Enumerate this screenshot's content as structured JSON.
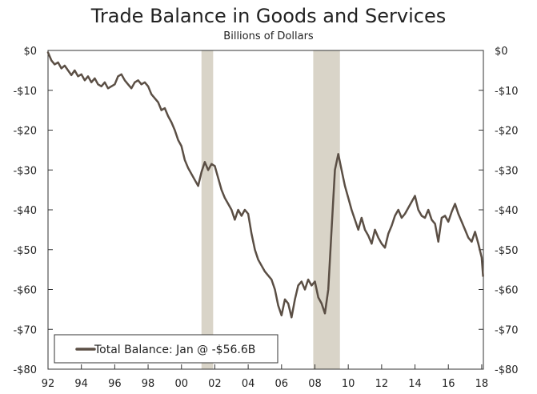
{
  "chart_data": {
    "type": "line",
    "title": "Trade Balance in Goods and Services",
    "subtitle": "Billions of Dollars",
    "xlabel": "",
    "ylabel": "",
    "xlim": [
      1992,
      2018.1
    ],
    "ylim": [
      -80,
      0
    ],
    "x_ticks": [
      1992,
      1994,
      1996,
      1998,
      2000,
      2002,
      2004,
      2006,
      2008,
      2010,
      2012,
      2014,
      2016,
      2018
    ],
    "x_tick_labels": [
      "92",
      "94",
      "96",
      "98",
      "00",
      "02",
      "04",
      "06",
      "08",
      "10",
      "12",
      "14",
      "16",
      "18"
    ],
    "y_ticks": [
      0,
      -10,
      -20,
      -30,
      -40,
      -50,
      -60,
      -70,
      -80
    ],
    "y_tick_labels": [
      "$0",
      "-$10",
      "-$20",
      "-$30",
      "-$40",
      "-$50",
      "-$60",
      "-$70",
      "-$80"
    ],
    "grid": false,
    "legend_position": "bottom-left",
    "recession_shading": [
      [
        2001.2,
        2001.9
      ],
      [
        2007.9,
        2009.5
      ]
    ],
    "series": [
      {
        "name": "Total Balance: Jan @ -$56.6B",
        "color": "#5b4f45",
        "points": [
          [
            1992.0,
            -0.5
          ],
          [
            1992.2,
            -2.5
          ],
          [
            1992.4,
            -3.5
          ],
          [
            1992.6,
            -3.0
          ],
          [
            1992.8,
            -4.5
          ],
          [
            1993.0,
            -3.8
          ],
          [
            1993.2,
            -5.0
          ],
          [
            1993.4,
            -6.2
          ],
          [
            1993.6,
            -5.0
          ],
          [
            1993.8,
            -6.5
          ],
          [
            1994.0,
            -6.0
          ],
          [
            1994.2,
            -7.5
          ],
          [
            1994.4,
            -6.5
          ],
          [
            1994.6,
            -8.0
          ],
          [
            1994.8,
            -7.0
          ],
          [
            1995.0,
            -8.5
          ],
          [
            1995.2,
            -9.0
          ],
          [
            1995.4,
            -8.0
          ],
          [
            1995.6,
            -9.5
          ],
          [
            1995.8,
            -9.0
          ],
          [
            1996.0,
            -8.5
          ],
          [
            1996.2,
            -6.5
          ],
          [
            1996.4,
            -6.0
          ],
          [
            1996.6,
            -7.5
          ],
          [
            1996.8,
            -8.5
          ],
          [
            1997.0,
            -9.5
          ],
          [
            1997.2,
            -8.0
          ],
          [
            1997.4,
            -7.5
          ],
          [
            1997.6,
            -8.5
          ],
          [
            1997.8,
            -8.0
          ],
          [
            1998.0,
            -9.0
          ],
          [
            1998.2,
            -11.0
          ],
          [
            1998.4,
            -12.0
          ],
          [
            1998.6,
            -13.0
          ],
          [
            1998.8,
            -15.0
          ],
          [
            1999.0,
            -14.5
          ],
          [
            1999.2,
            -16.5
          ],
          [
            1999.4,
            -18.0
          ],
          [
            1999.6,
            -20.0
          ],
          [
            1999.8,
            -22.5
          ],
          [
            2000.0,
            -24.0
          ],
          [
            2000.2,
            -27.5
          ],
          [
            2000.4,
            -29.5
          ],
          [
            2000.6,
            -31.0
          ],
          [
            2000.8,
            -32.5
          ],
          [
            2001.0,
            -34.0
          ],
          [
            2001.2,
            -30.5
          ],
          [
            2001.4,
            -28.0
          ],
          [
            2001.6,
            -30.0
          ],
          [
            2001.8,
            -28.5
          ],
          [
            2002.0,
            -29.0
          ],
          [
            2002.2,
            -32.0
          ],
          [
            2002.4,
            -35.0
          ],
          [
            2002.6,
            -37.0
          ],
          [
            2002.8,
            -38.5
          ],
          [
            2003.0,
            -40.0
          ],
          [
            2003.2,
            -42.5
          ],
          [
            2003.4,
            -40.0
          ],
          [
            2003.6,
            -41.5
          ],
          [
            2003.8,
            -40.0
          ],
          [
            2004.0,
            -41.0
          ],
          [
            2004.2,
            -46.0
          ],
          [
            2004.4,
            -50.0
          ],
          [
            2004.6,
            -52.5
          ],
          [
            2004.8,
            -54.0
          ],
          [
            2005.0,
            -55.5
          ],
          [
            2005.2,
            -56.5
          ],
          [
            2005.4,
            -57.5
          ],
          [
            2005.6,
            -60.0
          ],
          [
            2005.8,
            -64.0
          ],
          [
            2006.0,
            -66.5
          ],
          [
            2006.2,
            -62.5
          ],
          [
            2006.4,
            -63.5
          ],
          [
            2006.6,
            -67.0
          ],
          [
            2006.8,
            -62.5
          ],
          [
            2007.0,
            -59.0
          ],
          [
            2007.2,
            -58.0
          ],
          [
            2007.4,
            -60.0
          ],
          [
            2007.6,
            -57.5
          ],
          [
            2007.8,
            -59.0
          ],
          [
            2008.0,
            -58.0
          ],
          [
            2008.2,
            -62.0
          ],
          [
            2008.4,
            -63.5
          ],
          [
            2008.6,
            -66.0
          ],
          [
            2008.8,
            -60.0
          ],
          [
            2009.0,
            -45.0
          ],
          [
            2009.2,
            -30.0
          ],
          [
            2009.4,
            -26.0
          ],
          [
            2009.6,
            -30.0
          ],
          [
            2009.8,
            -34.0
          ],
          [
            2010.0,
            -37.0
          ],
          [
            2010.2,
            -40.0
          ],
          [
            2010.4,
            -42.5
          ],
          [
            2010.6,
            -45.0
          ],
          [
            2010.8,
            -42.0
          ],
          [
            2011.0,
            -45.0
          ],
          [
            2011.2,
            -46.5
          ],
          [
            2011.4,
            -48.5
          ],
          [
            2011.6,
            -45.0
          ],
          [
            2011.8,
            -47.0
          ],
          [
            2012.0,
            -48.5
          ],
          [
            2012.2,
            -49.5
          ],
          [
            2012.4,
            -46.0
          ],
          [
            2012.6,
            -44.0
          ],
          [
            2012.8,
            -41.5
          ],
          [
            2013.0,
            -40.0
          ],
          [
            2013.2,
            -42.0
          ],
          [
            2013.4,
            -41.0
          ],
          [
            2013.6,
            -39.5
          ],
          [
            2013.8,
            -38.0
          ],
          [
            2014.0,
            -36.5
          ],
          [
            2014.2,
            -40.0
          ],
          [
            2014.4,
            -41.5
          ],
          [
            2014.6,
            -42.0
          ],
          [
            2014.8,
            -40.0
          ],
          [
            2015.0,
            -42.5
          ],
          [
            2015.2,
            -43.5
          ],
          [
            2015.4,
            -48.0
          ],
          [
            2015.6,
            -42.0
          ],
          [
            2015.8,
            -41.5
          ],
          [
            2016.0,
            -43.0
          ],
          [
            2016.2,
            -40.5
          ],
          [
            2016.4,
            -38.5
          ],
          [
            2016.6,
            -41.0
          ],
          [
            2016.8,
            -43.0
          ],
          [
            2017.0,
            -45.0
          ],
          [
            2017.2,
            -47.0
          ],
          [
            2017.4,
            -48.0
          ],
          [
            2017.6,
            -45.5
          ],
          [
            2017.8,
            -48.5
          ],
          [
            2018.0,
            -52.0
          ],
          [
            2018.08,
            -56.6
          ]
        ]
      }
    ]
  }
}
